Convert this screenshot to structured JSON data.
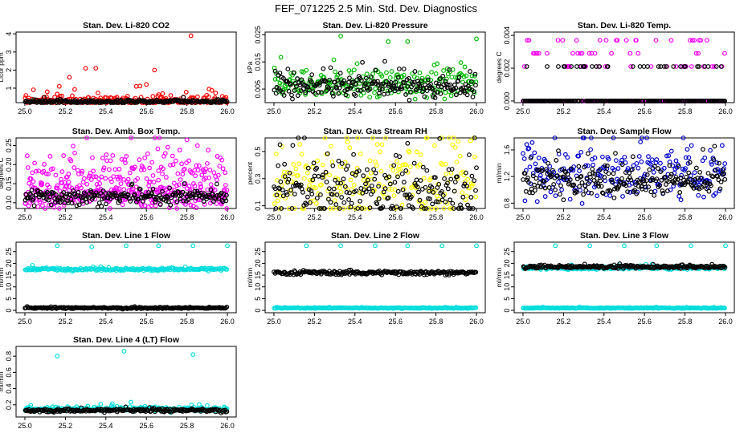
{
  "figure_title": "FEF_071225  2.5 Min. Std. Dev. Diagnostics",
  "chart_data": [
    {
      "type": "scatter",
      "title": "Stan. Dev. Li-820 CO2",
      "xlabel": "",
      "ylabel": "Licor ppm",
      "xlim": [
        25.0,
        26.0
      ],
      "ylim": [
        0.2,
        4.1
      ],
      "xticks": [
        "25.0",
        "25.2",
        "25.4",
        "25.6",
        "25.8",
        "26.0"
      ],
      "yticks": [
        "1",
        "2",
        "3",
        "4"
      ],
      "series": [
        {
          "color": "#ff0000",
          "base": 0.3,
          "spread": 0.15,
          "outliers": [
            [
              25.22,
              1.6
            ],
            [
              25.3,
              2.1
            ],
            [
              25.35,
              2.1
            ],
            [
              25.55,
              1.1
            ],
            [
              25.6,
              1.2
            ],
            [
              25.64,
              2.0
            ],
            [
              25.68,
              0.7
            ],
            [
              25.72,
              0.6
            ],
            [
              25.82,
              3.9
            ],
            [
              25.17,
              1.1
            ]
          ]
        },
        {
          "color": "#000000",
          "base": 0.25,
          "spread": 0.05,
          "outliers": []
        }
      ]
    },
    {
      "type": "scatter",
      "title": "Stan. Dev. Li-820 Pressure",
      "xlabel": "",
      "ylabel": "kPa",
      "xlim": [
        25.0,
        26.0
      ],
      "ylim": [
        0.0,
        0.026
      ],
      "xticks": [
        "25.0",
        "25.2",
        "25.4",
        "25.6",
        "25.8",
        "26.0"
      ],
      "yticks": [
        "0.005",
        "0.015",
        "0.025"
      ],
      "series": [
        {
          "color": "#00bb00",
          "base": 0.007,
          "spread": 0.0025,
          "outliers": [
            [
              25.33,
              0.0245
            ],
            [
              25.66,
              0.0225
            ],
            [
              26.0,
              0.0235
            ],
            [
              25.1,
              0.011
            ],
            [
              25.38,
              0.011
            ],
            [
              25.72,
              0.011
            ]
          ]
        },
        {
          "color": "#000000",
          "base": 0.006,
          "spread": 0.002,
          "outliers": []
        }
      ]
    },
    {
      "type": "scatter",
      "title": "Stan. Dev. Li-820 Temp.",
      "xlabel": "",
      "ylabel": "degrees C",
      "xlim": [
        25.0,
        26.0
      ],
      "ylim": [
        -0.0001,
        0.0042
      ],
      "xticks": [
        "25.0",
        "25.2",
        "25.4",
        "25.6",
        "25.8",
        "26.0"
      ],
      "yticks": [
        "0.000",
        "0.002",
        "0.004"
      ],
      "series": [
        {
          "color": "#ff00ff",
          "levels": [
            0.0,
            0.0021,
            0.0029,
            0.0037
          ]
        },
        {
          "color": "#000000",
          "levels": [
            0.0,
            0.0021
          ]
        }
      ]
    },
    {
      "type": "scatter",
      "title": "Stan. Dev. Amb. Box Temp.",
      "xlabel": "",
      "ylabel": "degrees C",
      "xlim": [
        25.0,
        26.0
      ],
      "ylim": [
        0.085,
        0.27
      ],
      "xticks": [
        "25.0",
        "25.2",
        "25.4",
        "25.6",
        "25.8",
        "26.0"
      ],
      "yticks": [
        "0.10",
        "0.15",
        "0.20",
        "0.25"
      ],
      "series": [
        {
          "color": "#ff00ff",
          "base": 0.16,
          "spread": 0.04,
          "outliers": [
            [
              25.8,
              0.265
            ]
          ]
        },
        {
          "color": "#ff00ff",
          "base": 0.12,
          "spread": 0.015,
          "outliers": []
        },
        {
          "color": "#000000",
          "base": 0.115,
          "spread": 0.01,
          "outliers": []
        }
      ]
    },
    {
      "type": "scatter",
      "title": "Stan. Dev. Gas Stream RH",
      "xlabel": "",
      "ylabel": "percent",
      "xlim": [
        25.0,
        26.0
      ],
      "ylim": [
        0.08,
        0.6
      ],
      "xticks": [
        "25.0",
        "25.2",
        "25.4",
        "25.6",
        "25.8",
        "26.0"
      ],
      "yticks": [
        "0.1",
        "0.3",
        "0.5"
      ],
      "series": [
        {
          "color": "#ffff00",
          "base": 0.28,
          "spread": 0.15,
          "outliers": []
        },
        {
          "color": "#000000",
          "base": 0.2,
          "spread": 0.1,
          "outliers": [
            [
              25.03,
              0.55
            ],
            [
              25.66,
              0.56
            ],
            [
              26.0,
              0.38
            ]
          ]
        }
      ]
    },
    {
      "type": "scatter",
      "title": "Stan. Dev. Sample Flow",
      "xlabel": "",
      "ylabel": "ml/min",
      "xlim": [
        25.0,
        26.0
      ],
      "ylim": [
        0.72,
        1.78
      ],
      "xticks": [
        "25.0",
        "25.2",
        "25.4",
        "25.6",
        "25.8",
        "26.0"
      ],
      "yticks": [
        "0.8",
        "1.2",
        "1.6"
      ],
      "series": [
        {
          "color": "#0000cc",
          "base": 1.25,
          "spread": 0.2,
          "outliers": [
            [
              25.58,
              1.72
            ],
            [
              25.11,
              0.9
            ],
            [
              25.78,
              0.85
            ]
          ]
        },
        {
          "color": "#000000",
          "base": 1.15,
          "spread": 0.12,
          "outliers": [
            [
              25.2,
              0.85
            ],
            [
              25.45,
              0.88
            ]
          ]
        }
      ]
    },
    {
      "type": "scatter",
      "title": "Stan. Dev. Line 1 Flow",
      "xlabel": "",
      "ylabel": "ml/min",
      "xlim": [
        25.0,
        26.0
      ],
      "ylim": [
        -1,
        29
      ],
      "xticks": [
        "25.0",
        "25.2",
        "25.4",
        "25.6",
        "25.8",
        "26.0"
      ],
      "yticks": [
        "0",
        "5",
        "10",
        "15",
        "20",
        "25"
      ],
      "series": [
        {
          "color": "#00dddd",
          "base": 17.5,
          "spread": 0.3,
          "outliers": [
            [
              25.16,
              27.5
            ],
            [
              25.33,
              27
            ],
            [
              25.5,
              27.5
            ],
            [
              25.66,
              27.5
            ],
            [
              25.83,
              27.5
            ],
            [
              26.0,
              27.5
            ]
          ]
        },
        {
          "color": "#000000",
          "base": 1.0,
          "spread": 0.15,
          "outliers": []
        }
      ]
    },
    {
      "type": "scatter",
      "title": "Stan. Dev. Line 2 Flow",
      "xlabel": "",
      "ylabel": "ml/min",
      "xlim": [
        25.0,
        26.0
      ],
      "ylim": [
        -1,
        29
      ],
      "xticks": [
        "25.0",
        "25.2",
        "25.4",
        "25.6",
        "25.8",
        "26.0"
      ],
      "yticks": [
        "0",
        "5",
        "10",
        "15",
        "20",
        "25"
      ],
      "series": [
        {
          "color": "#000000",
          "base": 16.0,
          "spread": 0.4,
          "outliers": []
        },
        {
          "color": "#00dddd",
          "base": 1.0,
          "spread": 0.1,
          "outliers": [
            [
              25.16,
              27.5
            ],
            [
              25.33,
              27.5
            ],
            [
              25.5,
              27.5
            ],
            [
              25.66,
              27.5
            ],
            [
              25.83,
              27.5
            ],
            [
              26.0,
              27.5
            ]
          ]
        }
      ]
    },
    {
      "type": "scatter",
      "title": "Stan. Dev. Line 3 Flow",
      "xlabel": "",
      "ylabel": "ml/min",
      "xlim": [
        25.0,
        26.0
      ],
      "ylim": [
        -1,
        29
      ],
      "xticks": [
        "25.0",
        "25.2",
        "25.4",
        "25.6",
        "25.8",
        "26.0"
      ],
      "yticks": [
        "0",
        "5",
        "10",
        "15",
        "20",
        "25"
      ],
      "series": [
        {
          "color": "#00dddd",
          "base": 18.0,
          "spread": 0.3,
          "outliers": [
            [
              25.16,
              27.5
            ],
            [
              25.33,
              27.5
            ],
            [
              25.5,
              27.5
            ],
            [
              25.66,
              27.5
            ],
            [
              25.83,
              27.5
            ],
            [
              26.0,
              27.5
            ]
          ]
        },
        {
          "color": "#000000",
          "base": 18.5,
          "spread": 0.3,
          "outliers": []
        },
        {
          "color": "#00dddd",
          "base": 1.0,
          "spread": 0.1,
          "outliers": []
        }
      ]
    },
    {
      "type": "scatter",
      "title": "Stan. Dev. Line 4 (LT) Flow",
      "xlabel": "",
      "ylabel": "ml/min",
      "xlim": [
        25.0,
        26.0
      ],
      "ylim": [
        0.05,
        0.92
      ],
      "xticks": [
        "25.0",
        "25.2",
        "25.4",
        "25.6",
        "25.8",
        "26.0"
      ],
      "yticks": [
        "0.2",
        "0.4",
        "0.6",
        "0.8"
      ],
      "series": [
        {
          "color": "#00dddd",
          "base": 0.15,
          "spread": 0.015,
          "outliers": [
            [
              25.16,
              0.8
            ],
            [
              25.49,
              0.86
            ],
            [
              25.83,
              0.82
            ]
          ]
        },
        {
          "color": "#000000",
          "base": 0.13,
          "spread": 0.01,
          "outliers": []
        }
      ]
    }
  ]
}
